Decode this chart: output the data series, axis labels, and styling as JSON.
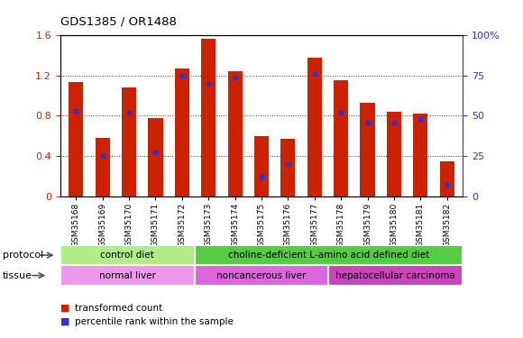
{
  "title": "GDS1385 / OR1488",
  "samples": [
    "GSM35168",
    "GSM35169",
    "GSM35170",
    "GSM35171",
    "GSM35172",
    "GSM35173",
    "GSM35174",
    "GSM35175",
    "GSM35176",
    "GSM35177",
    "GSM35178",
    "GSM35179",
    "GSM35180",
    "GSM35181",
    "GSM35182"
  ],
  "transformed_count": [
    1.14,
    0.58,
    1.08,
    0.78,
    1.27,
    1.57,
    1.24,
    0.6,
    0.57,
    1.38,
    1.15,
    0.93,
    0.84,
    0.82,
    0.35
  ],
  "percentile_rank": [
    53,
    25,
    52,
    27,
    75,
    70,
    74,
    12,
    20,
    76,
    52,
    46,
    46,
    48,
    7
  ],
  "bar_color": "#cc2200",
  "dot_color": "#3333cc",
  "ylim_left": [
    0,
    1.6
  ],
  "ylim_right": [
    0,
    100
  ],
  "yticks_left": [
    0,
    0.4,
    0.8,
    1.2,
    1.6
  ],
  "yticks_right": [
    0,
    25,
    50,
    75,
    100
  ],
  "ytick_labels_left": [
    "0",
    "0.4",
    "0.8",
    "1.2",
    "1.6"
  ],
  "ytick_labels_right": [
    "0",
    "25",
    "50",
    "75",
    "100%"
  ],
  "left_axis_color": "#cc2200",
  "right_axis_color": "#3333cc",
  "grid_color": "#333333",
  "protocol_groups": [
    {
      "text": "control diet",
      "start": 0,
      "end": 5,
      "color": "#aeed88"
    },
    {
      "text": "choline-deficient L-amino acid defined diet",
      "start": 5,
      "end": 15,
      "color": "#55cc44"
    }
  ],
  "tissue_groups": [
    {
      "text": "normal liver",
      "start": 0,
      "end": 5,
      "color": "#ee99ee"
    },
    {
      "text": "noncancerous liver",
      "start": 5,
      "end": 10,
      "color": "#dd66dd"
    },
    {
      "text": "hepatocellular carcinoma",
      "start": 10,
      "end": 15,
      "color": "#cc44bb"
    }
  ],
  "legend_items": [
    {
      "color": "#cc2200",
      "label": "transformed count"
    },
    {
      "color": "#3333cc",
      "label": "percentile rank within the sample"
    }
  ],
  "bg_color": "#ffffff",
  "plot_bg_color": "#ffffff",
  "bar_width": 0.55
}
